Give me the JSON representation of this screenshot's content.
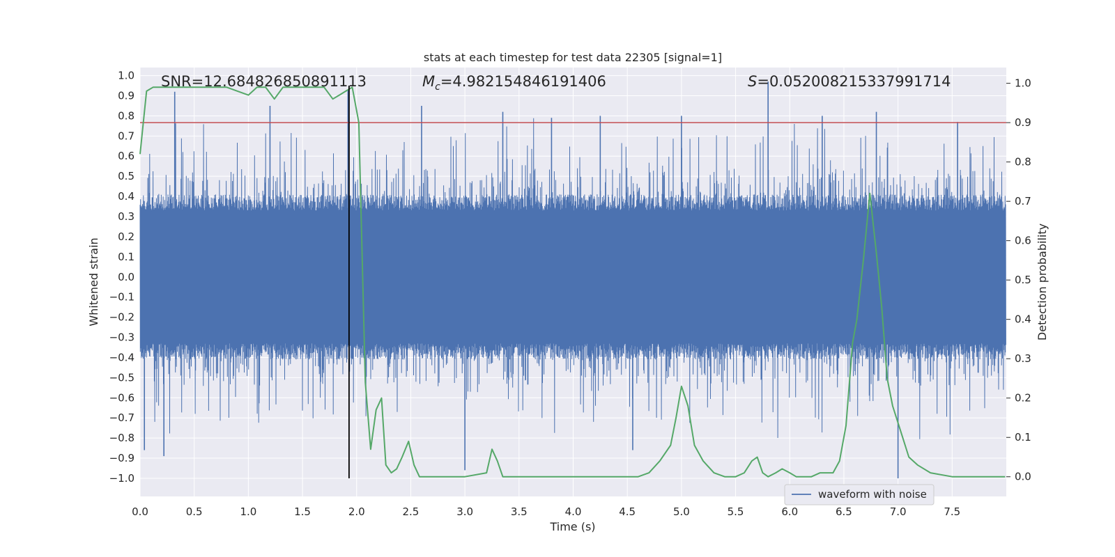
{
  "chart_data": {
    "type": "line",
    "title": "stats at each timestep for test data 22305 [signal=1]",
    "xlabel": "Time (s)",
    "ylabel_left": "Whitened strain",
    "ylabel_right": "Detection probability",
    "xlim": [
      0.0,
      8.0
    ],
    "ylim_left": [
      -1.09,
      1.04
    ],
    "ylim_right": [
      -0.05,
      1.04
    ],
    "x_ticks": [
      "0.0",
      "0.5",
      "1.0",
      "1.5",
      "2.0",
      "2.5",
      "3.0",
      "3.5",
      "4.0",
      "4.5",
      "5.0",
      "5.5",
      "6.0",
      "6.5",
      "7.0",
      "7.5"
    ],
    "y_left_ticks": [
      "1.0",
      "0.9",
      "0.8",
      "0.7",
      "0.6",
      "0.5",
      "0.4",
      "0.3",
      "0.2",
      "0.1",
      "0.0",
      "-0.1",
      "-0.2",
      "-0.3",
      "-0.4",
      "-0.5",
      "-0.6",
      "-0.7",
      "-0.8",
      "-0.9",
      "-1.0"
    ],
    "y_right_ticks": [
      "1.0",
      "0.9",
      "0.8",
      "0.7",
      "0.6",
      "0.5",
      "0.4",
      "0.3",
      "0.2",
      "0.1",
      "0.0"
    ],
    "grid": true,
    "annotations": {
      "snr": "SNR=12.684826850891113",
      "mc": "=4.982154846191406",
      "mc_symbol": "M",
      "mc_sub": "c",
      "s": "=0.052008215337991714",
      "s_symbol": "S"
    },
    "threshold": {
      "value": 0.9,
      "axis": "right",
      "color": "#c44e52"
    },
    "vertical_marker": {
      "x": 1.93,
      "ymin": -1.0,
      "ymax": 0.95,
      "color": "#000000"
    },
    "legend": {
      "entries": [
        "waveform with noise"
      ],
      "placement": "lower-right"
    },
    "series": [
      {
        "name": "waveform with noise",
        "axis": "left",
        "color": "#4c72b0",
        "render": "dense-noise",
        "core_amplitude": 0.33,
        "peaks_x": [
          0.04,
          0.22,
          0.32,
          1.2,
          1.92,
          2.6,
          3.0,
          3.35,
          3.8,
          4.25,
          4.55,
          5.0,
          5.8,
          6.3,
          6.8,
          7.0,
          7.55
        ],
        "peaks_y": [
          -0.86,
          -0.89,
          0.92,
          0.85,
          0.93,
          0.85,
          -0.96,
          0.82,
          0.79,
          0.8,
          -0.86,
          0.8,
          0.97,
          0.8,
          0.82,
          -1.0,
          0.77
        ]
      },
      {
        "name": "detection probability",
        "axis": "right",
        "color": "#55a868",
        "x": [
          0.0,
          0.06,
          0.12,
          0.2,
          0.3,
          0.4,
          0.5,
          0.6,
          0.7,
          0.8,
          0.9,
          1.0,
          1.08,
          1.16,
          1.24,
          1.32,
          1.4,
          1.5,
          1.6,
          1.7,
          1.78,
          1.84,
          1.9,
          1.96,
          2.02,
          2.08,
          2.13,
          2.18,
          2.23,
          2.27,
          2.32,
          2.37,
          2.42,
          2.48,
          2.53,
          2.58,
          2.64,
          2.7,
          2.8,
          3.0,
          3.2,
          3.25,
          3.3,
          3.35,
          3.42,
          3.5,
          3.6,
          3.7,
          3.8,
          3.9,
          4.0,
          4.1,
          4.2,
          4.3,
          4.4,
          4.5,
          4.6,
          4.7,
          4.8,
          4.9,
          4.95,
          5.0,
          5.06,
          5.12,
          5.2,
          5.3,
          5.4,
          5.5,
          5.58,
          5.65,
          5.7,
          5.75,
          5.8,
          5.87,
          5.93,
          6.0,
          6.06,
          6.12,
          6.2,
          6.28,
          6.34,
          6.4,
          6.46,
          6.52,
          6.58,
          6.62,
          6.68,
          6.74,
          6.8,
          6.85,
          6.9,
          6.95,
          7.02,
          7.1,
          7.18,
          7.3,
          7.5,
          7.7,
          7.9,
          7.99
        ],
        "values": [
          0.82,
          0.98,
          0.99,
          0.99,
          0.99,
          0.99,
          0.99,
          0.99,
          0.99,
          0.99,
          0.98,
          0.97,
          0.99,
          0.99,
          0.96,
          0.99,
          0.99,
          0.99,
          0.99,
          0.99,
          0.96,
          0.97,
          0.98,
          0.99,
          0.9,
          0.24,
          0.07,
          0.17,
          0.2,
          0.03,
          0.01,
          0.02,
          0.05,
          0.09,
          0.03,
          0.0,
          0.0,
          0.0,
          0.0,
          0.0,
          0.01,
          0.07,
          0.04,
          0.0,
          0.0,
          0.0,
          0.0,
          0.0,
          0.0,
          0.0,
          0.0,
          0.0,
          0.0,
          0.0,
          0.0,
          0.0,
          0.0,
          0.01,
          0.04,
          0.08,
          0.15,
          0.23,
          0.18,
          0.08,
          0.04,
          0.01,
          0.0,
          0.0,
          0.01,
          0.04,
          0.05,
          0.01,
          0.0,
          0.01,
          0.02,
          0.01,
          0.0,
          0.0,
          0.0,
          0.01,
          0.01,
          0.01,
          0.04,
          0.13,
          0.34,
          0.4,
          0.55,
          0.72,
          0.57,
          0.43,
          0.25,
          0.18,
          0.12,
          0.05,
          0.03,
          0.01,
          0.0,
          0.0,
          0.0,
          0.0
        ]
      }
    ]
  }
}
